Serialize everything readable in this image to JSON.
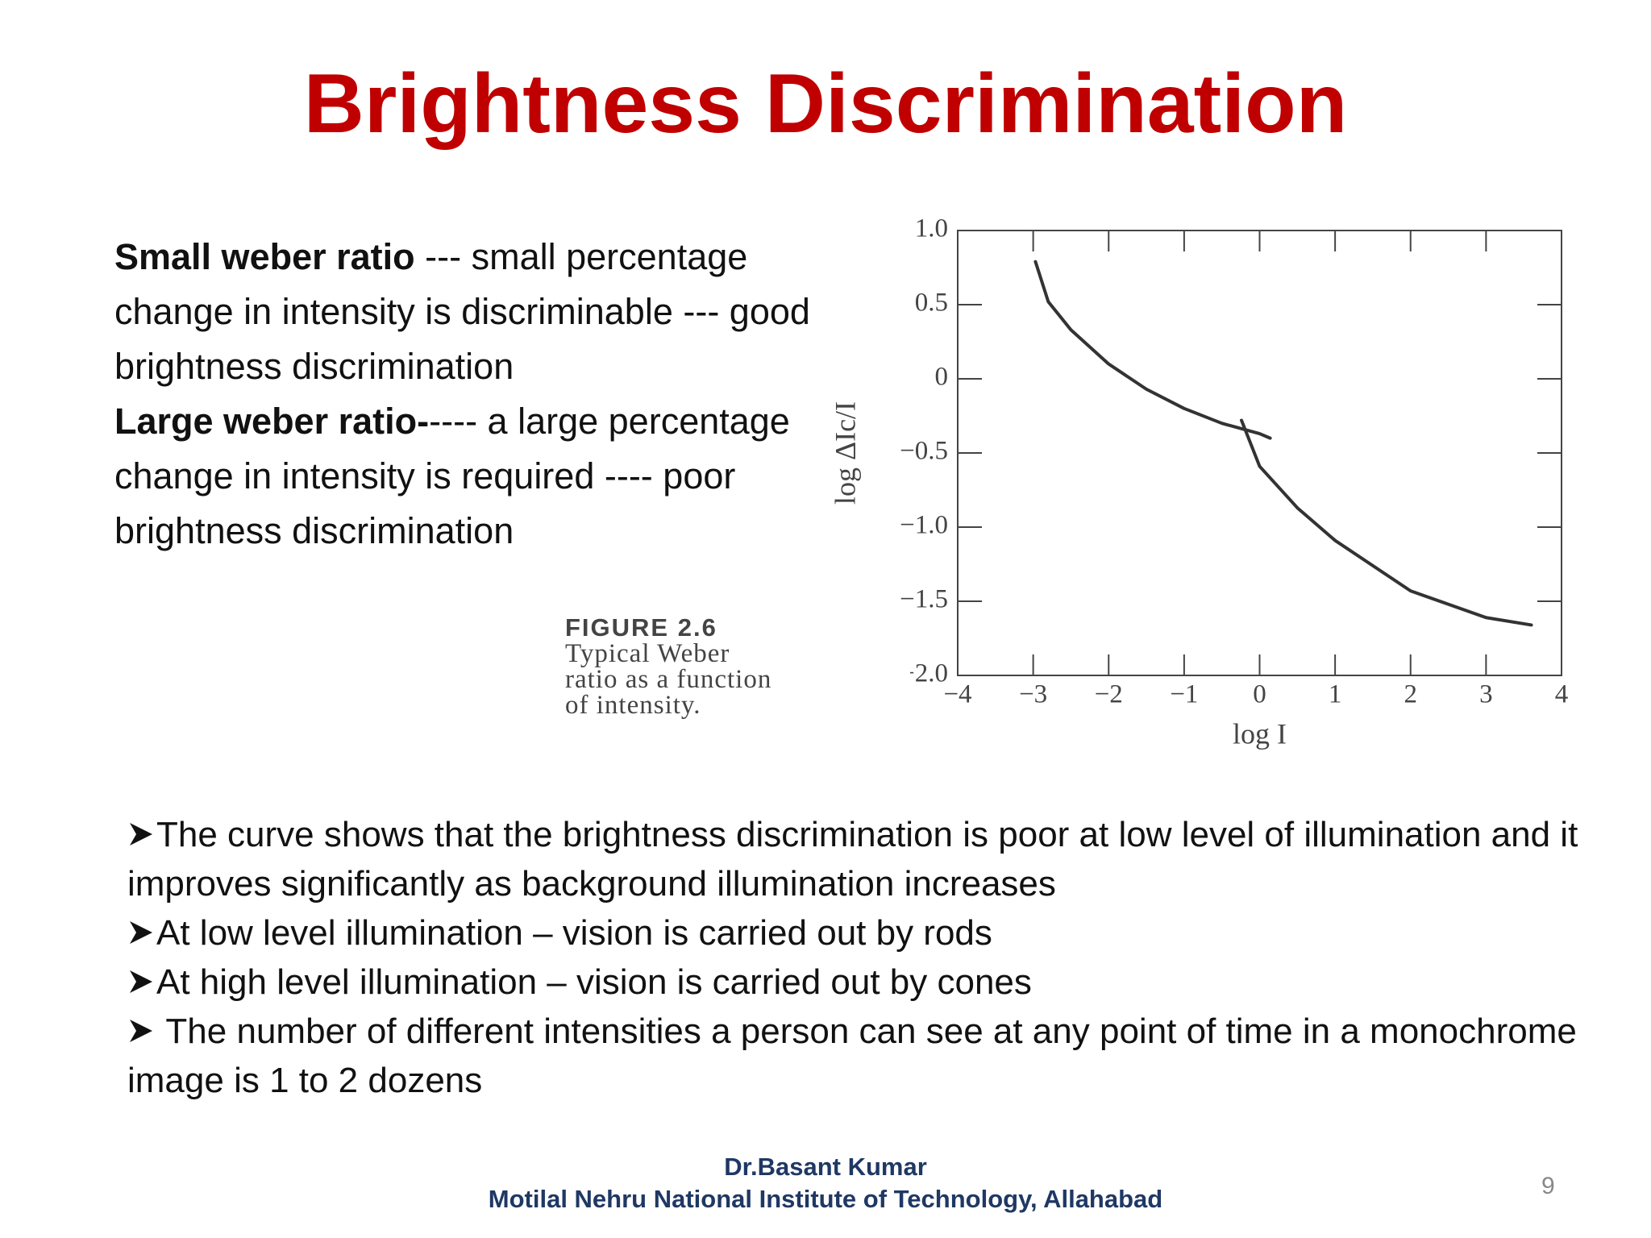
{
  "title": "Brightness Discrimination",
  "intro": [
    {
      "bold": "Small weber ratio",
      "text": " --- small percentage change in intensity is discriminable --- good brightness discrimination"
    },
    {
      "bold": "Large weber ratio-",
      "text": "---- a large percentage change in intensity is required ---- poor brightness discrimination"
    }
  ],
  "figure_caption": {
    "label": "FIGURE 2.6",
    "lines": [
      "Typical Weber",
      "ratio as a function",
      "of intensity."
    ]
  },
  "chart_data": {
    "type": "line",
    "xlabel": "log I",
    "ylabel": "log ΔIc/I",
    "xlim": [
      -4,
      4
    ],
    "xticks": [
      {
        "value": -4,
        "label": "−4"
      },
      {
        "value": -3,
        "label": "−3"
      },
      {
        "value": -2,
        "label": "−2"
      },
      {
        "value": -1,
        "label": "−1"
      },
      0,
      1,
      2,
      3,
      4
    ],
    "ylim": [
      -2,
      1
    ],
    "yticks": [
      {
        "value": 1,
        "label": "1.0"
      },
      0.5,
      0,
      {
        "value": -0.5,
        "label": "−0.5"
      },
      {
        "value": -1,
        "label": "−1.0"
      },
      {
        "value": -1.5,
        "label": "−1.5"
      },
      {
        "value": -2,
        "label": "−2.0"
      }
    ],
    "series": [
      {
        "color": "#333333",
        "x": [
          -2.97,
          -2.8,
          -2.5,
          -2,
          -1.5,
          -1,
          -0.5,
          0,
          0.14
        ],
        "values": [
          0.79,
          0.52,
          0.33,
          0.1,
          -0.07,
          -0.2,
          -0.3,
          -0.37,
          -0.4
        ]
      },
      {
        "color": "#333333",
        "x": [
          -0.24,
          0,
          0.5,
          1,
          2,
          3,
          3.6
        ],
        "values": [
          -0.28,
          -0.59,
          -0.87,
          -1.09,
          -1.43,
          -1.61,
          -1.66
        ]
      }
    ]
  },
  "bullets": [
    "The curve shows that the brightness discrimination is poor at low level of illumination and it improves significantly as background illumination increases",
    "At low level illumination – vision is carried out by rods",
    "At high level illumination – vision is carried out by cones",
    " The number of different intensities a person can see at any point of time  in a monochrome image is 1 to 2 dozens"
  ],
  "footer": {
    "author": "Dr.Basant Kumar",
    "institute": "Motilal Nehru National Institute of Technology, Allahabad"
  },
  "page_number": "9"
}
